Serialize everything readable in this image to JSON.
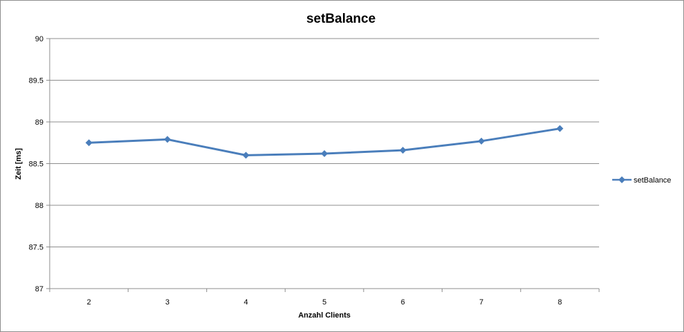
{
  "chart_data": {
    "type": "line",
    "title": "setBalance",
    "xlabel": "Anzahl Clients",
    "ylabel": "Zeit [ms]",
    "categories": [
      "2",
      "3",
      "4",
      "5",
      "6",
      "7",
      "8"
    ],
    "yticks": [
      "87",
      "87.5",
      "88",
      "88.5",
      "89",
      "89.5",
      "90"
    ],
    "ylim": [
      87,
      90
    ],
    "grid": true,
    "legend_position": "right",
    "series": [
      {
        "name": "setBalance",
        "values": [
          88.75,
          88.79,
          88.6,
          88.62,
          88.66,
          88.77,
          88.92
        ],
        "color": "#4a7ebb",
        "marker": "diamond"
      }
    ]
  }
}
